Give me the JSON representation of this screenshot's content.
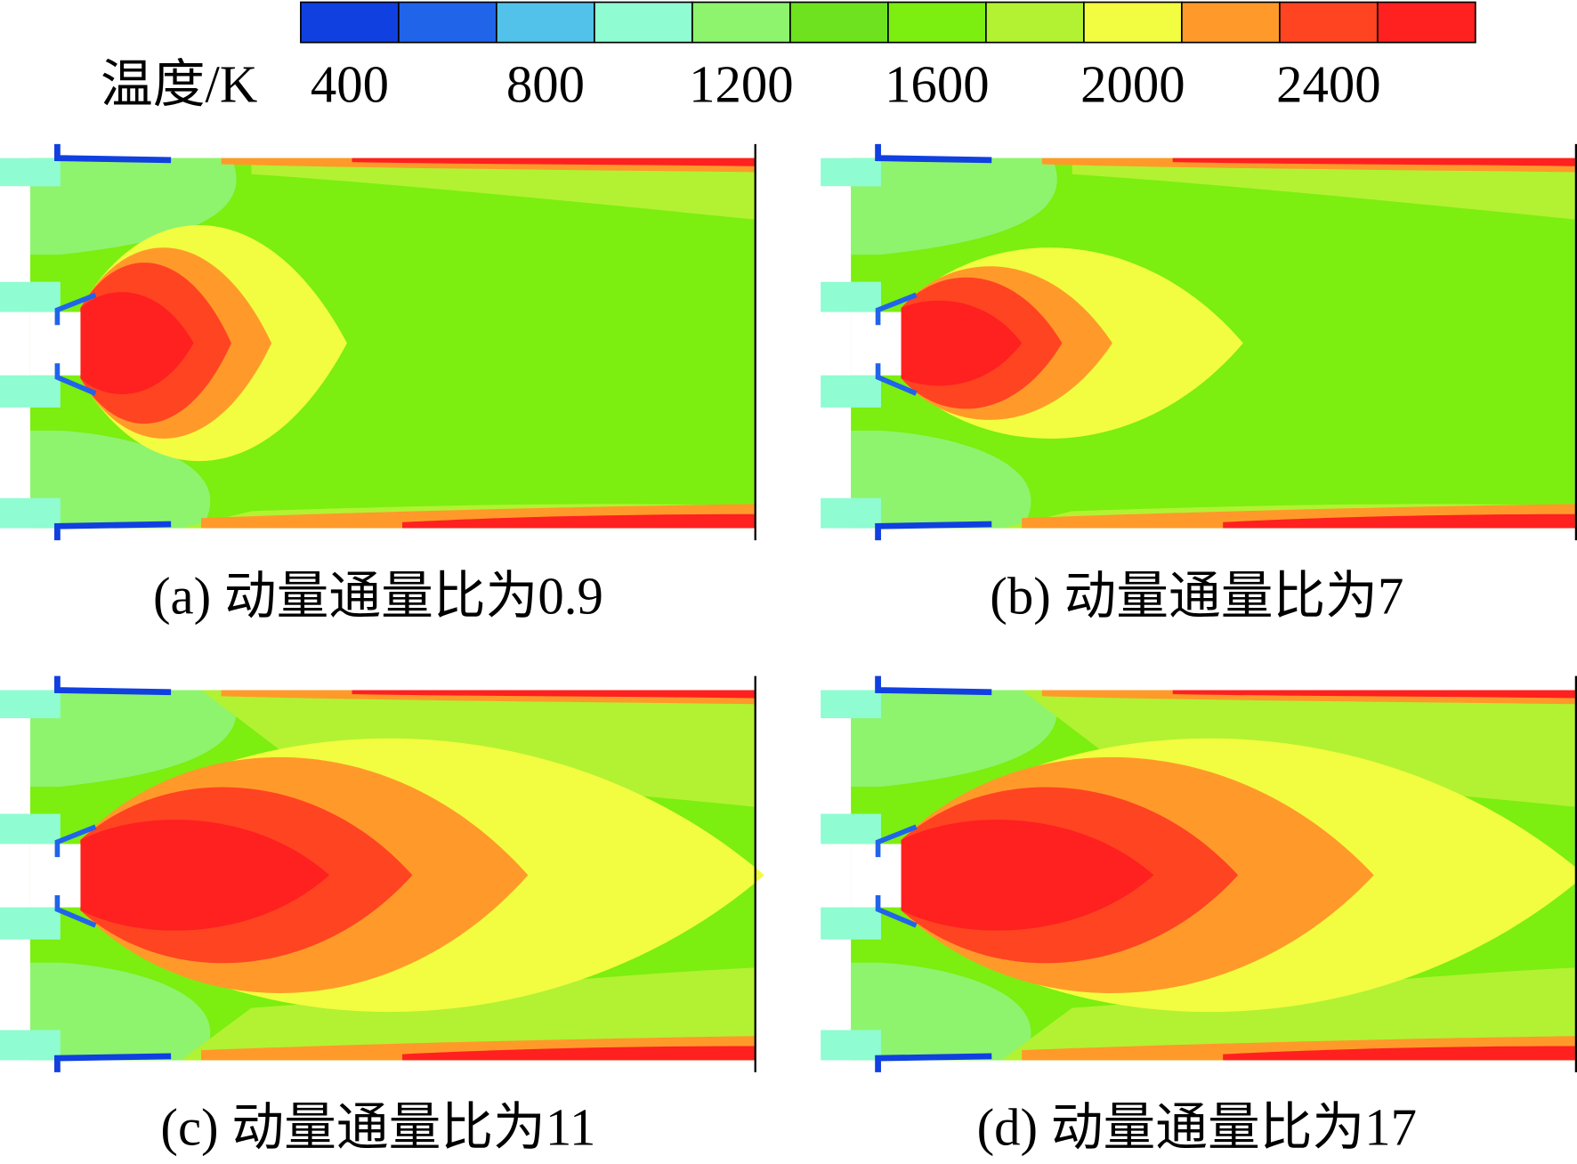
{
  "colorbar": {
    "label": "温度/K",
    "range": [
      300,
      2700
    ],
    "ticks": [
      400,
      800,
      1200,
      1600,
      2000,
      2400
    ],
    "colors": [
      "#1040e0",
      "#2064ea",
      "#52c2ea",
      "#8ffcd2",
      "#8ef46e",
      "#6ee21e",
      "#7cee10",
      "#b2f232",
      "#f2fc40",
      "#ff9a2a",
      "#ff4422",
      "#ff2020"
    ]
  },
  "panels": [
    {
      "caption": "(a) 动量通量比为0.9"
    },
    {
      "caption": "(b) 动量通量比为7"
    },
    {
      "caption": "(c) 动量通量比为11"
    },
    {
      "caption": "(d) 动量通量比为17"
    }
  ]
}
